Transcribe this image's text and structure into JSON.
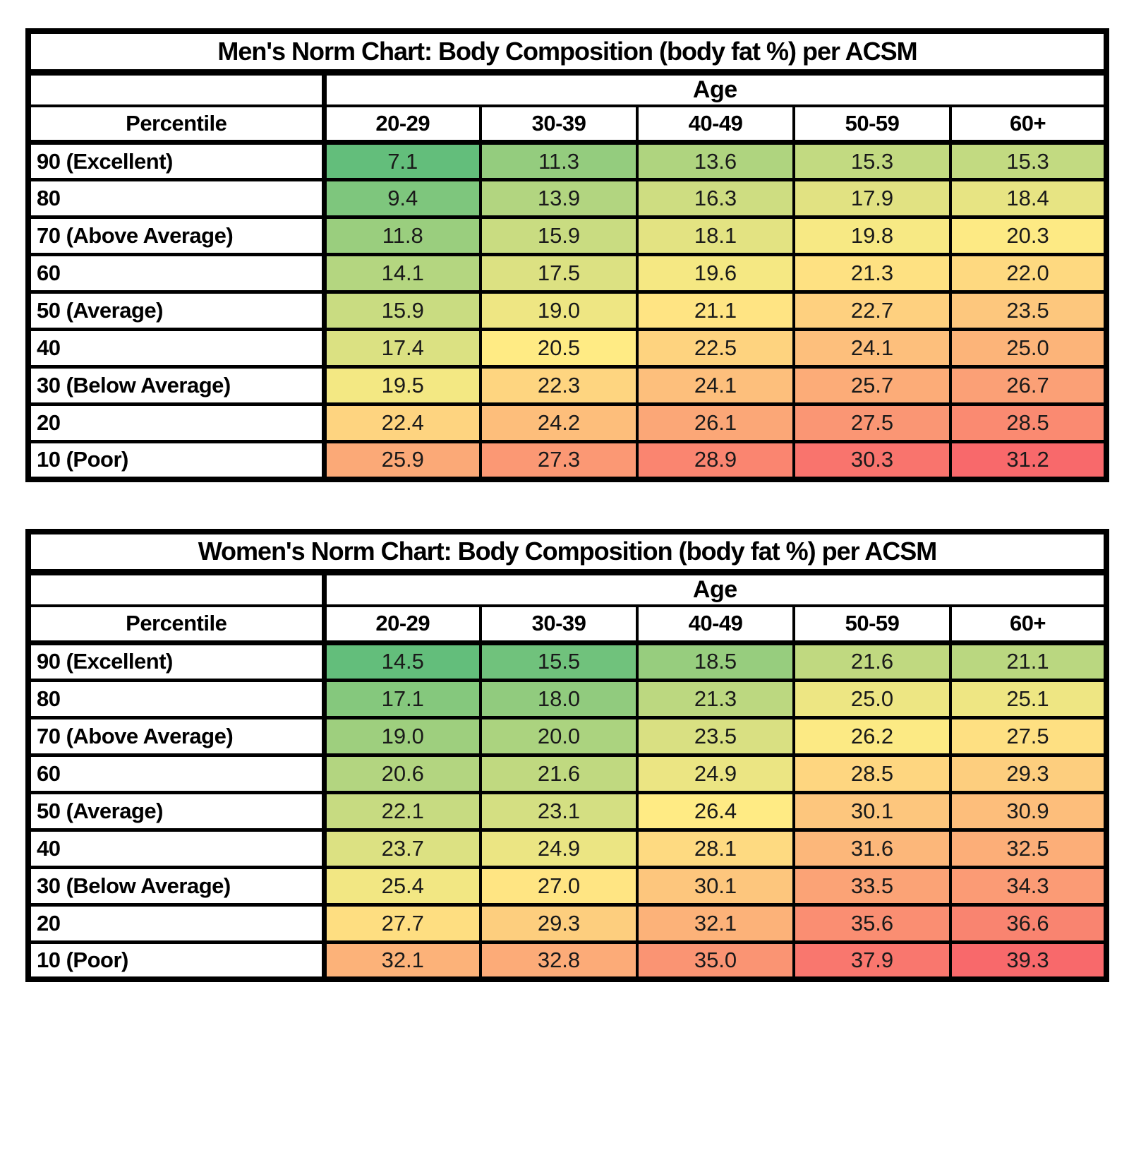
{
  "page": {
    "background": "#ffffff"
  },
  "chart_data": [
    {
      "type": "heatmap",
      "title": "Men's Norm Chart: Body Composition (body fat %) per ACSM",
      "col_group_label": "Age",
      "row_header": "Percentile",
      "columns": [
        "20-29",
        "30-39",
        "40-49",
        "50-59",
        "60+"
      ],
      "rows": [
        {
          "label": "90 (Excellent)",
          "values": [
            "7.1",
            "11.3",
            "13.6",
            "15.3",
            "15.3"
          ]
        },
        {
          "label": "80",
          "values": [
            "9.4",
            "13.9",
            "16.3",
            "17.9",
            "18.4"
          ]
        },
        {
          "label": "70 (Above Average)",
          "values": [
            "11.8",
            "15.9",
            "18.1",
            "19.8",
            "20.3"
          ]
        },
        {
          "label": "60",
          "values": [
            "14.1",
            "17.5",
            "19.6",
            "21.3",
            "22.0"
          ]
        },
        {
          "label": "50 (Average)",
          "values": [
            "15.9",
            "19.0",
            "21.1",
            "22.7",
            "23.5"
          ]
        },
        {
          "label": "40",
          "values": [
            "17.4",
            "20.5",
            "22.5",
            "24.1",
            "25.0"
          ]
        },
        {
          "label": "30 (Below Average)",
          "values": [
            "19.5",
            "22.3",
            "24.1",
            "25.7",
            "26.7"
          ]
        },
        {
          "label": "20",
          "values": [
            "22.4",
            "24.2",
            "26.1",
            "27.5",
            "28.5"
          ]
        },
        {
          "label": "10 (Poor)",
          "values": [
            "25.9",
            "27.3",
            "28.9",
            "30.3",
            "31.2"
          ]
        }
      ],
      "color_scale": {
        "style": "3-color-scale",
        "min": 7.1,
        "mid": 20.5,
        "max": 31.2,
        "min_color": "#63BE7B",
        "mid_color": "#FFEB84",
        "max_color": "#F8696B"
      }
    },
    {
      "type": "heatmap",
      "title": "Women's Norm Chart: Body Composition (body fat %) per ACSM",
      "col_group_label": "Age",
      "row_header": "Percentile",
      "columns": [
        "20-29",
        "30-39",
        "40-49",
        "50-59",
        "60+"
      ],
      "rows": [
        {
          "label": "90 (Excellent)",
          "values": [
            "14.5",
            "15.5",
            "18.5",
            "21.6",
            "21.1"
          ]
        },
        {
          "label": "80",
          "values": [
            "17.1",
            "18.0",
            "21.3",
            "25.0",
            "25.1"
          ]
        },
        {
          "label": "70 (Above Average)",
          "values": [
            "19.0",
            "20.0",
            "23.5",
            "26.2",
            "27.5"
          ]
        },
        {
          "label": "60",
          "values": [
            "20.6",
            "21.6",
            "24.9",
            "28.5",
            "29.3"
          ]
        },
        {
          "label": "50 (Average)",
          "values": [
            "22.1",
            "23.1",
            "26.4",
            "30.1",
            "30.9"
          ]
        },
        {
          "label": "40",
          "values": [
            "23.7",
            "24.9",
            "28.1",
            "31.6",
            "32.5"
          ]
        },
        {
          "label": "30 (Below Average)",
          "values": [
            "25.4",
            "27.0",
            "30.1",
            "33.5",
            "34.3"
          ]
        },
        {
          "label": "20",
          "values": [
            "27.7",
            "29.3",
            "32.1",
            "35.6",
            "36.6"
          ]
        },
        {
          "label": "10 (Poor)",
          "values": [
            "32.1",
            "32.8",
            "35.0",
            "37.9",
            "39.3"
          ]
        }
      ],
      "color_scale": {
        "style": "3-color-scale",
        "min": 14.5,
        "mid": 26.4,
        "max": 39.3,
        "min_color": "#63BE7B",
        "mid_color": "#FFEB84",
        "max_color": "#F8696B"
      }
    }
  ]
}
